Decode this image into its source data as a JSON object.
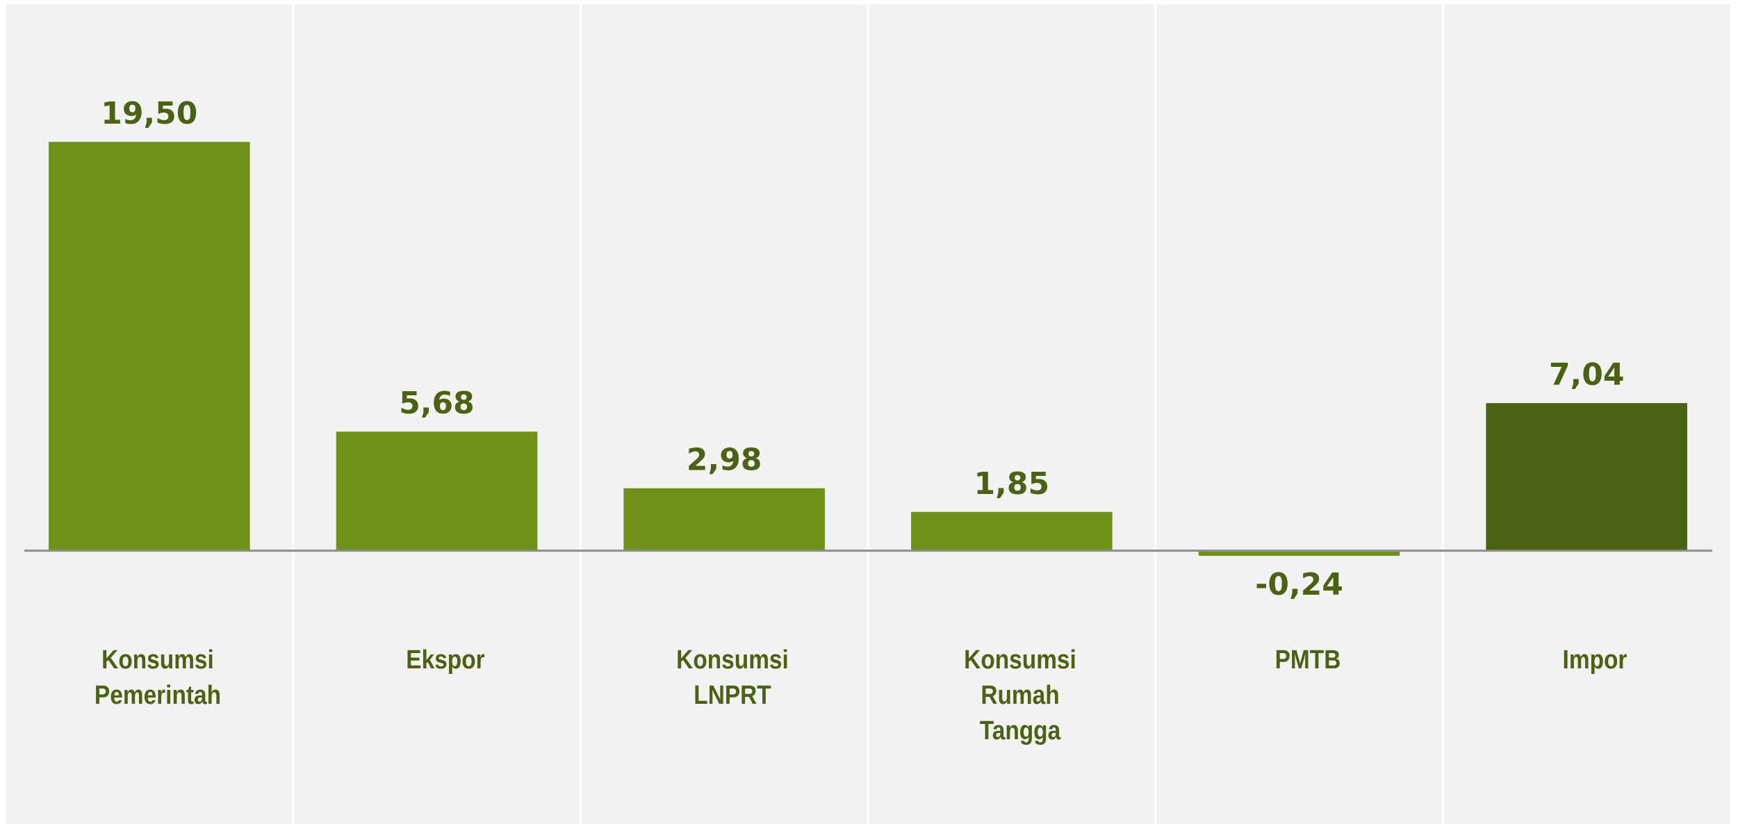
{
  "chart_data": {
    "type": "bar",
    "categories": [
      "Konsumsi\nPemerintah",
      "Ekspor",
      "Konsumsi\nLNPRT",
      "Konsumsi\nRumah\nTangga",
      "PMTB",
      "Impor"
    ],
    "values": [
      19.5,
      5.68,
      2.98,
      1.85,
      -0.24,
      7.04
    ],
    "value_labels": [
      "19,50",
      "5,68",
      "2,98",
      "1,85",
      "-0,24",
      "7,04"
    ],
    "colors": [
      "#6f9119",
      "#6f9119",
      "#6f9119",
      "#6f9119",
      "#6f9119",
      "#4b6113"
    ],
    "ylim": [
      -13,
      26
    ]
  }
}
